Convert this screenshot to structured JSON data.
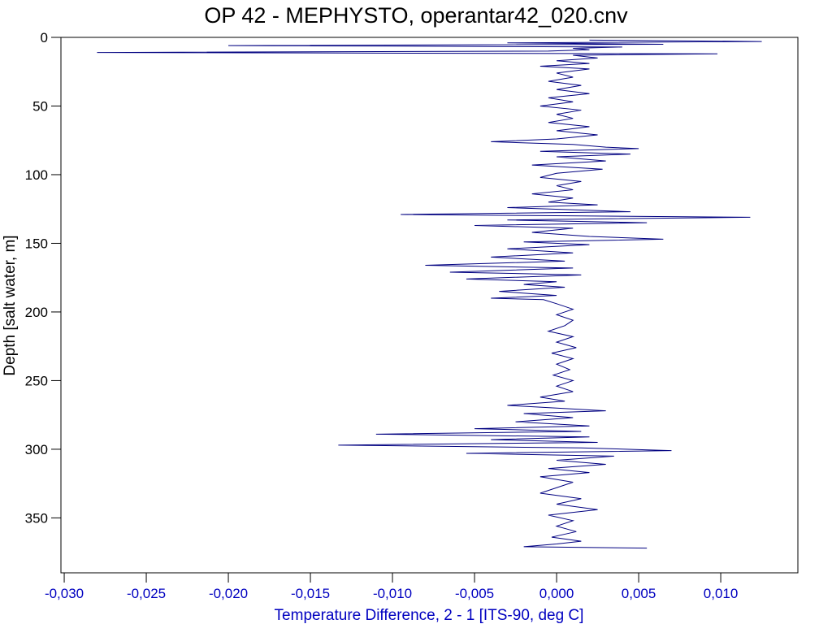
{
  "chart_data": {
    "type": "line",
    "title": "OP 42 - MEPHYSTO, operantar42_020.cnv",
    "x_label": "Temperature Difference, 2 - 1 [ITS-90, deg C]",
    "y_label": "Depth [salt water, m]",
    "color": "#000080",
    "y_inverted": true,
    "x": [
      0.002,
      0.0125,
      -0.003,
      0.0065,
      -0.02,
      0.004,
      0.001,
      0.002,
      -0.0005,
      -0.028,
      0.0098,
      0.001,
      0.0025,
      0.0,
      0.002,
      -0.001,
      0.002,
      0.0,
      0.001,
      -0.0005,
      0.0015,
      0.0,
      0.002,
      -0.0005,
      0.001,
      -0.001,
      0.0015,
      0.0,
      0.001,
      -0.0005,
      0.002,
      0.0,
      0.0025,
      0.0,
      -0.004,
      0.001,
      0.003,
      0.005,
      -0.001,
      0.0045,
      0.0,
      0.003,
      -0.0015,
      0.0028,
      0.0,
      -0.001,
      0.0015,
      0.0,
      0.001,
      -0.0015,
      0.001,
      -0.0005,
      0.0025,
      -0.003,
      0.0045,
      -0.0095,
      0.0118,
      -0.003,
      0.0055,
      -0.005,
      0.001,
      -0.0015,
      0.002,
      0.0065,
      -0.002,
      0.002,
      -0.003,
      0.001,
      -0.004,
      0.0005,
      -0.008,
      0.001,
      -0.0065,
      0.0015,
      -0.0055,
      0.0,
      -0.002,
      0.0005,
      -0.0035,
      0.0,
      -0.004,
      -0.0008,
      0.0,
      0.001,
      0.0,
      0.001,
      0.0005,
      -0.0005,
      0.001,
      0.0,
      0.0012,
      -0.0003,
      0.001,
      0.0,
      0.0008,
      -0.0002,
      0.001,
      0.0,
      0.001,
      -0.001,
      0.0005,
      -0.003,
      0.0,
      0.003,
      -0.002,
      0.001,
      -0.0025,
      0.002,
      -0.005,
      0.0015,
      -0.011,
      0.002,
      -0.004,
      0.0025,
      -0.0133,
      0.0015,
      0.007,
      -0.0055,
      0.0035,
      0.0,
      0.003,
      -0.0005,
      0.002,
      -0.001,
      0.001,
      0.0,
      -0.001,
      0.0015,
      0.0,
      0.0025,
      -0.0005,
      0.001,
      0.0,
      0.0012,
      -0.0003,
      0.0015,
      0.0,
      -0.002,
      0.0055
    ],
    "y": [
      2,
      3,
      4,
      5,
      6,
      7,
      8,
      9,
      10,
      11,
      12,
      13,
      15,
      17,
      19,
      21,
      23,
      26,
      29,
      32,
      35,
      38,
      41,
      44,
      47,
      50,
      53,
      56,
      59,
      62,
      65,
      68,
      71,
      74,
      76,
      78,
      80,
      81,
      83,
      85,
      87,
      90,
      93,
      96,
      99,
      102,
      105,
      108,
      111,
      114,
      117,
      120,
      122,
      124,
      127,
      129,
      131,
      133,
      135,
      137,
      139,
      142,
      145,
      147,
      149,
      151,
      154,
      157,
      160,
      163,
      166,
      168,
      171,
      173,
      176,
      178,
      180,
      182,
      185,
      188,
      190,
      191,
      194,
      198,
      202,
      206,
      210,
      214,
      218,
      222,
      226,
      230,
      234,
      238,
      242,
      246,
      250,
      254,
      258,
      262,
      265,
      268,
      270,
      272,
      274,
      277,
      280,
      283,
      285,
      287,
      289,
      291,
      293,
      295,
      297,
      299,
      301,
      303,
      305,
      308,
      311,
      314,
      317,
      320,
      324,
      328,
      332,
      336,
      340,
      344,
      348,
      352,
      356,
      360,
      364,
      367,
      369,
      371,
      372
    ],
    "xlim": [
      -0.0302,
      0.0147
    ],
    "ylim": [
      0,
      390
    ],
    "xticks": [
      {
        "value": -0.03,
        "label": "-0,030"
      },
      {
        "value": -0.025,
        "label": "-0,025"
      },
      {
        "value": -0.02,
        "label": "-0,020"
      },
      {
        "value": -0.015,
        "label": "-0,015"
      },
      {
        "value": -0.01,
        "label": "-0,010"
      },
      {
        "value": -0.005,
        "label": "-0,005"
      },
      {
        "value": 0,
        "label": "0,000"
      },
      {
        "value": 0.005,
        "label": "0,005"
      },
      {
        "value": 0.01,
        "label": "0,010"
      }
    ],
    "yticks": [
      0,
      50,
      100,
      150,
      200,
      250,
      300,
      350
    ]
  }
}
